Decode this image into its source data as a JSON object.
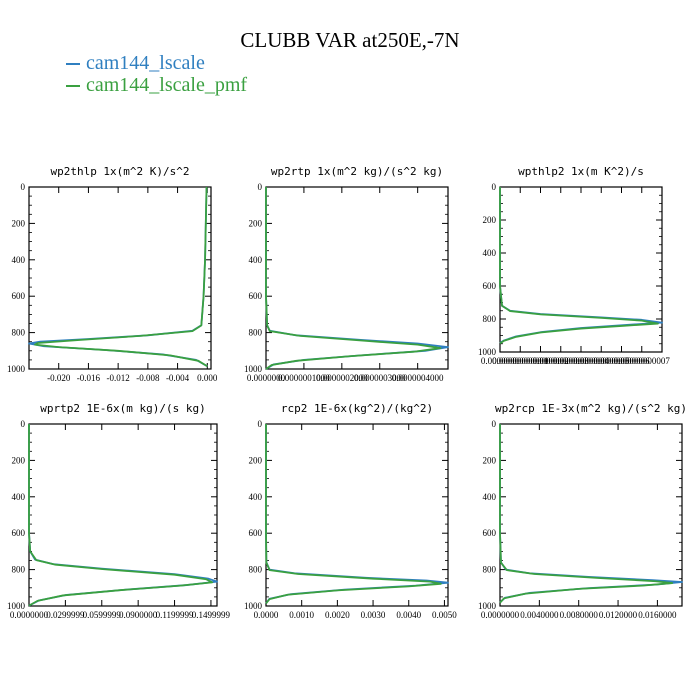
{
  "figure_title": "CLUBB VAR at250E,-7N",
  "legend": [
    {
      "name": "cam144_lscale",
      "color": "#2f7fc0"
    },
    {
      "name": "cam144_lscale_pmf",
      "color": "#3aa040"
    }
  ],
  "chart_data": [
    {
      "type": "line",
      "title": "wp2thlp   1x(m^2 K)/s^2",
      "ylim": [
        1000,
        0
      ],
      "yticks": [
        "0",
        "200",
        "400",
        "600",
        "800",
        "1000"
      ],
      "xlim": [
        -0.024,
        0.0005
      ],
      "xticks": [
        {
          "v": -0.02,
          "label": "-0.020"
        },
        {
          "v": -0.016,
          "label": "-0.016"
        },
        {
          "v": -0.012,
          "label": "-0.012"
        },
        {
          "v": -0.008,
          "label": "-0.008"
        },
        {
          "v": -0.004,
          "label": "-0.004"
        },
        {
          "v": 0.0,
          "label": "0.000"
        }
      ],
      "series": [
        {
          "name": "cam144_lscale",
          "points": [
            [
              -0.0001,
              0
            ],
            [
              -0.0002,
              200
            ],
            [
              -0.0003,
              400
            ],
            [
              -0.0005,
              600
            ],
            [
              -0.0008,
              760
            ],
            [
              -0.002,
              790
            ],
            [
              -0.008,
              815
            ],
            [
              -0.016,
              835
            ],
            [
              -0.0225,
              850
            ],
            [
              -0.024,
              860
            ],
            [
              -0.022,
              875
            ],
            [
              -0.014,
              895
            ],
            [
              -0.006,
              920
            ],
            [
              -0.0015,
              950
            ],
            [
              0,
              985
            ]
          ]
        },
        {
          "name": "cam144_lscale_pmf",
          "points": [
            [
              -0.0001,
              0
            ],
            [
              -0.0002,
              200
            ],
            [
              -0.0003,
              400
            ],
            [
              -0.0005,
              600
            ],
            [
              -0.0008,
              760
            ],
            [
              -0.002,
              792
            ],
            [
              -0.009,
              818
            ],
            [
              -0.017,
              840
            ],
            [
              -0.0228,
              857
            ],
            [
              -0.0232,
              866
            ],
            [
              -0.02,
              880
            ],
            [
              -0.012,
              900
            ],
            [
              -0.005,
              925
            ],
            [
              -0.0012,
              955
            ],
            [
              0,
              985
            ]
          ]
        }
      ]
    },
    {
      "type": "line",
      "title": "wp2rtp   1x(m^2 kg)/(s^2 kg)",
      "ylim": [
        1000,
        0
      ],
      "yticks": [
        "0",
        "200",
        "400",
        "600",
        "800",
        "1000"
      ],
      "xlim": [
        0,
        4.8e-07
      ],
      "xticks": [
        {
          "v": 0.0,
          "label": "0.0000000"
        },
        {
          "v": 1e-07,
          "label": "0.0000001000"
        },
        {
          "v": 2e-07,
          "label": "0.0000002000"
        },
        {
          "v": 3e-07,
          "label": "0.0000003000"
        },
        {
          "v": 4e-07,
          "label": "0.0000004000"
        }
      ],
      "series": [
        {
          "name": "cam144_lscale",
          "points": [
            [
              0,
              0
            ],
            [
              0,
              600
            ],
            [
              3e-09,
              760
            ],
            [
              1e-08,
              790
            ],
            [
              8e-08,
              815
            ],
            [
              2.5e-07,
              840
            ],
            [
              4e-07,
              860
            ],
            [
              4.8e-07,
              880
            ],
            [
              4.2e-07,
              900
            ],
            [
              2.5e-07,
              925
            ],
            [
              1e-07,
              950
            ],
            [
              2e-08,
              975
            ],
            [
              0,
              1000
            ]
          ]
        },
        {
          "name": "cam144_lscale_pmf",
          "points": [
            [
              0,
              0
            ],
            [
              0,
              600
            ],
            [
              3e-09,
              760
            ],
            [
              1e-08,
              792
            ],
            [
              9e-08,
              818
            ],
            [
              2.6e-07,
              845
            ],
            [
              4e-07,
              866
            ],
            [
              4.6e-07,
              885
            ],
            [
              3.9e-07,
              905
            ],
            [
              2.2e-07,
              930
            ],
            [
              8e-08,
              955
            ],
            [
              1.5e-08,
              978
            ],
            [
              0,
              1000
            ]
          ]
        }
      ]
    },
    {
      "type": "line",
      "title": "wpthlp2   1x(m K^2)/s",
      "ylim": [
        1000,
        0
      ],
      "yticks": [
        "0",
        "200",
        "400",
        "600",
        "800",
        "1000"
      ],
      "xlim": [
        0,
        8e-11
      ],
      "xticks": [
        {
          "v": 0.0,
          "label": "0.0000000"
        },
        {
          "v": 1e-11,
          "label": "0.00000000001"
        },
        {
          "v": 2e-11,
          "label": "0.00000000002"
        },
        {
          "v": 3e-11,
          "label": "0.00000000003"
        },
        {
          "v": 4e-11,
          "label": "0.00000000004"
        },
        {
          "v": 5e-11,
          "label": "0.00000000005"
        },
        {
          "v": 6e-11,
          "label": "0.00000000006"
        },
        {
          "v": 7e-11,
          "label": "0.00000000007"
        }
      ],
      "series": [
        {
          "name": "cam144_lscale",
          "points": [
            [
              0,
              0
            ],
            [
              0,
              600
            ],
            [
              1e-12,
              720
            ],
            [
              5e-12,
              750
            ],
            [
              2e-11,
              770
            ],
            [
              5e-11,
              790
            ],
            [
              7e-11,
              805
            ],
            [
              8e-11,
              822
            ],
            [
              6e-11,
              838
            ],
            [
              4e-11,
              855
            ],
            [
              2e-11,
              880
            ],
            [
              8e-12,
              905
            ],
            [
              2e-12,
              930
            ],
            [
              0,
              945
            ]
          ]
        },
        {
          "name": "cam144_lscale_pmf",
          "points": [
            [
              0,
              0
            ],
            [
              0,
              600
            ],
            [
              1e-12,
              720
            ],
            [
              5e-12,
              752
            ],
            [
              2e-11,
              772
            ],
            [
              5e-11,
              793
            ],
            [
              7e-11,
              810
            ],
            [
              7.8e-11,
              828
            ],
            [
              6e-11,
              842
            ],
            [
              4e-11,
              858
            ],
            [
              2e-11,
              882
            ],
            [
              8e-12,
              908
            ],
            [
              2e-12,
              932
            ],
            [
              0,
              948
            ]
          ]
        }
      ]
    },
    {
      "type": "line",
      "title": "wprtp2   1E-6x(m kg)/(s kg)",
      "ylim": [
        1000,
        0
      ],
      "yticks": [
        "0",
        "200",
        "400",
        "600",
        "800",
        "1000"
      ],
      "xlim": [
        0,
        1.55e-07
      ],
      "xticks": [
        {
          "v": 0.0,
          "label": "0.0000000"
        },
        {
          "v": 3e-08,
          "label": "0.0299999"
        },
        {
          "v": 6e-08,
          "label": "0.0599999"
        },
        {
          "v": 9e-08,
          "label": "0.0900000"
        },
        {
          "v": 1.2e-07,
          "label": "0.1199999"
        },
        {
          "v": 1.5e-07,
          "label": "0.1499999"
        }
      ],
      "series": [
        {
          "name": "cam144_lscale",
          "points": [
            [
              0,
              0
            ],
            [
              0,
              600
            ],
            [
              1e-09,
              700
            ],
            [
              5e-09,
              745
            ],
            [
              2e-08,
              770
            ],
            [
              6e-08,
              795
            ],
            [
              1.2e-07,
              825
            ],
            [
              1.48e-07,
              850
            ],
            [
              1.55e-07,
              866
            ],
            [
              1.3e-07,
              885
            ],
            [
              8e-08,
              910
            ],
            [
              3e-08,
              940
            ],
            [
              8e-09,
              970
            ],
            [
              0,
              998
            ]
          ]
        },
        {
          "name": "cam144_lscale_pmf",
          "points": [
            [
              0,
              0
            ],
            [
              0,
              600
            ],
            [
              1e-09,
              700
            ],
            [
              6e-09,
              748
            ],
            [
              2.2e-08,
              773
            ],
            [
              6.2e-08,
              798
            ],
            [
              1.2e-07,
              828
            ],
            [
              1.46e-07,
              853
            ],
            [
              1.51e-07,
              870
            ],
            [
              1.25e-07,
              888
            ],
            [
              7.5e-08,
              913
            ],
            [
              2.8e-08,
              942
            ],
            [
              7e-09,
              972
            ],
            [
              0,
              998
            ]
          ]
        }
      ]
    },
    {
      "type": "line",
      "title": "rcp2   1E-6x(kg^2)/(kg^2)",
      "ylim": [
        1000,
        0
      ],
      "yticks": [
        "0",
        "200",
        "400",
        "600",
        "800",
        "1000"
      ],
      "xlim": [
        0,
        0.0051
      ],
      "xticks": [
        {
          "v": 0.0,
          "label": "0.0000"
        },
        {
          "v": 0.001,
          "label": "0.0010"
        },
        {
          "v": 0.002,
          "label": "0.0020"
        },
        {
          "v": 0.003,
          "label": "0.0030"
        },
        {
          "v": 0.004,
          "label": "0.0040"
        },
        {
          "v": 0.005,
          "label": "0.0050"
        }
      ],
      "series": [
        {
          "name": "cam144_lscale",
          "points": [
            [
              0,
              0
            ],
            [
              0,
              600
            ],
            [
              1e-05,
              760
            ],
            [
              0.0001,
              800
            ],
            [
              0.0008,
              820
            ],
            [
              0.0028,
              845
            ],
            [
              0.0045,
              860
            ],
            [
              0.0051,
              872
            ],
            [
              0.0042,
              888
            ],
            [
              0.0022,
              910
            ],
            [
              0.0007,
              935
            ],
            [
              0.0001,
              960
            ],
            [
              0,
              985
            ]
          ]
        },
        {
          "name": "cam144_lscale_pmf",
          "points": [
            [
              0,
              0
            ],
            [
              0,
              600
            ],
            [
              1e-05,
              762
            ],
            [
              0.0001,
              803
            ],
            [
              0.0009,
              824
            ],
            [
              0.003,
              850
            ],
            [
              0.0046,
              866
            ],
            [
              0.0049,
              878
            ],
            [
              0.004,
              892
            ],
            [
              0.002,
              914
            ],
            [
              0.0006,
              938
            ],
            [
              0.0001,
              962
            ],
            [
              0,
              986
            ]
          ]
        }
      ]
    },
    {
      "type": "line",
      "title": "wp2rcp   1E-3x(m^2 kg)/(s^2 kg)",
      "ylim": [
        1000,
        0
      ],
      "yticks": [
        "0",
        "200",
        "400",
        "600",
        "800",
        "1000"
      ],
      "xlim": [
        0,
        0.0185
      ],
      "xticks": [
        {
          "v": 0.0,
          "label": "0.0000000"
        },
        {
          "v": 0.004,
          "label": "0.0040000"
        },
        {
          "v": 0.008,
          "label": "0.0080000"
        },
        {
          "v": 0.012,
          "label": "0.0120000"
        },
        {
          "v": 0.016,
          "label": "0.0160000"
        }
      ],
      "series": [
        {
          "name": "cam144_lscale",
          "points": [
            [
              0,
              0
            ],
            [
              0,
              600
            ],
            [
              0.0001,
              760
            ],
            [
              0.0006,
              800
            ],
            [
              0.003,
              820
            ],
            [
              0.009,
              840
            ],
            [
              0.0155,
              858
            ],
            [
              0.0185,
              868
            ],
            [
              0.016,
              882
            ],
            [
              0.009,
              902
            ],
            [
              0.003,
              928
            ],
            [
              0.0005,
              955
            ],
            [
              0,
              980
            ]
          ]
        },
        {
          "name": "cam144_lscale_pmf",
          "points": [
            [
              0,
              0
            ],
            [
              0,
              600
            ],
            [
              0.0001,
              762
            ],
            [
              0.0007,
              803
            ],
            [
              0.0035,
              824
            ],
            [
              0.01,
              846
            ],
            [
              0.0158,
              864
            ],
            [
              0.0175,
              874
            ],
            [
              0.0145,
              888
            ],
            [
              0.008,
              906
            ],
            [
              0.0026,
              932
            ],
            [
              0.0004,
              958
            ],
            [
              0,
              982
            ]
          ]
        }
      ]
    }
  ]
}
